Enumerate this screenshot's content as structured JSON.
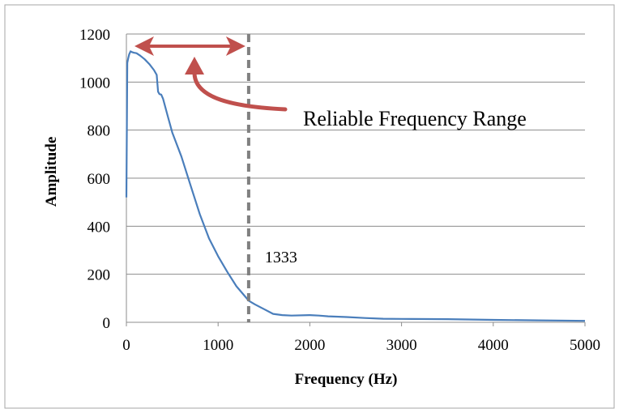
{
  "chart_data": {
    "type": "line",
    "xlabel": "Frequency (Hz)",
    "ylabel": "Amplitude",
    "xlim": [
      0,
      5000
    ],
    "ylim": [
      0,
      1200
    ],
    "x_ticks": [
      "0",
      "1000",
      "2000",
      "3000",
      "4000",
      "5000"
    ],
    "y_ticks": [
      "0",
      "200",
      "400",
      "600",
      "800",
      "1000",
      "1200"
    ],
    "grid": "horizontal",
    "legend": "none",
    "series": [
      {
        "color": "#4a7ebb",
        "x": [
          0,
          10,
          20,
          30,
          45,
          60,
          80,
          110,
          150,
          200,
          250,
          300,
          330,
          345,
          360,
          380,
          400,
          450,
          500,
          600,
          700,
          800,
          900,
          1000,
          1100,
          1200,
          1300,
          1333,
          1400,
          1500,
          1600,
          1700,
          1800,
          2000,
          2100,
          2200,
          2400,
          2600,
          2800,
          3000,
          3500,
          4000,
          4500,
          5000
        ],
        "y": [
          520,
          1080,
          1100,
          1115,
          1128,
          1125,
          1122,
          1120,
          1110,
          1095,
          1075,
          1050,
          1030,
          960,
          950,
          948,
          930,
          860,
          790,
          690,
          570,
          450,
          350,
          275,
          210,
          150,
          105,
          90,
          75,
          55,
          35,
          30,
          28,
          30,
          28,
          25,
          22,
          18,
          15,
          14,
          13,
          10,
          8,
          6
        ]
      }
    ],
    "reference_line": {
      "x": 1333,
      "label": "1333",
      "color": "#808080"
    },
    "annotations": {
      "range_label": "Reliable Frequency Range",
      "range_start": 0,
      "range_end": 1333,
      "arrow_color": "#c0504d"
    }
  }
}
